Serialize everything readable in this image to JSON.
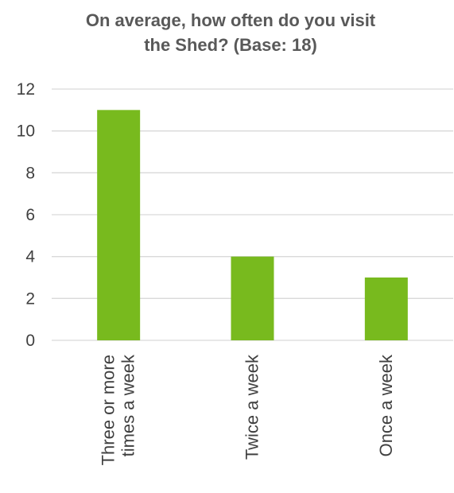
{
  "chart_data": {
    "type": "bar",
    "title_lines": [
      "On average, how often do you visit",
      "the Shed? (Base: 18)"
    ],
    "categories": [
      [
        "Three or more",
        "times a week"
      ],
      [
        "Twice a week"
      ],
      [
        "Once a week"
      ]
    ],
    "values": [
      11,
      4,
      3
    ],
    "xlabel": "",
    "ylabel": "",
    "ylim": [
      0,
      12
    ],
    "yticks": [
      "0",
      "2",
      "4",
      "6",
      "8",
      "10",
      "12"
    ],
    "grid": true,
    "legend": "none",
    "bar_color": "#78BA1E",
    "grid_color": "#D9D9D9"
  }
}
